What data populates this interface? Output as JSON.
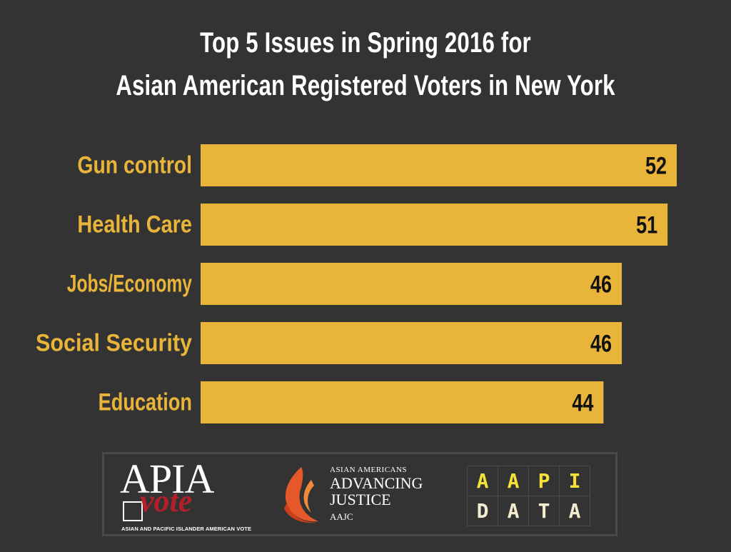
{
  "chart_data": {
    "type": "bar",
    "orientation": "horizontal",
    "title": "Top 5 Issues in Spring 2016 for\nAsian American Registered Voters in New York",
    "title_lines": [
      "Top 5 Issues in Spring 2016 for",
      "Asian American Registered Voters in New York"
    ],
    "categories": [
      "Gun control",
      "Health Care",
      "Jobs/Economy",
      "Social Security",
      "Education"
    ],
    "values": [
      52,
      51,
      46,
      46,
      44
    ],
    "data_labels": [
      "52",
      "51",
      "46",
      "46",
      "44"
    ],
    "xlim": [
      0,
      52
    ],
    "xlabel": "",
    "ylabel": "",
    "grid": false,
    "legend": "none",
    "bar_color": "#e8b43a",
    "label_color": "#e8b43a",
    "value_label_color": "#111111",
    "background": "#333333"
  },
  "logos": {
    "apia_vote": {
      "word": "APIA",
      "vote": "vote",
      "tagline": "ASIAN AND PACIFIC ISLANDER AMERICAN VOTE"
    },
    "aajc": {
      "line1": "ASIAN AMERICANS",
      "line2": "ADVANCING",
      "line3": "JUSTICE",
      "line4": "AAJC",
      "flame_color": "#e5582a"
    },
    "aapi_data": {
      "row1": [
        "A",
        "A",
        "P",
        "I"
      ],
      "row2": [
        "D",
        "A",
        "T",
        "A"
      ],
      "row1_color": "#f4e23a",
      "row2_color": "#f2ecd0"
    }
  }
}
